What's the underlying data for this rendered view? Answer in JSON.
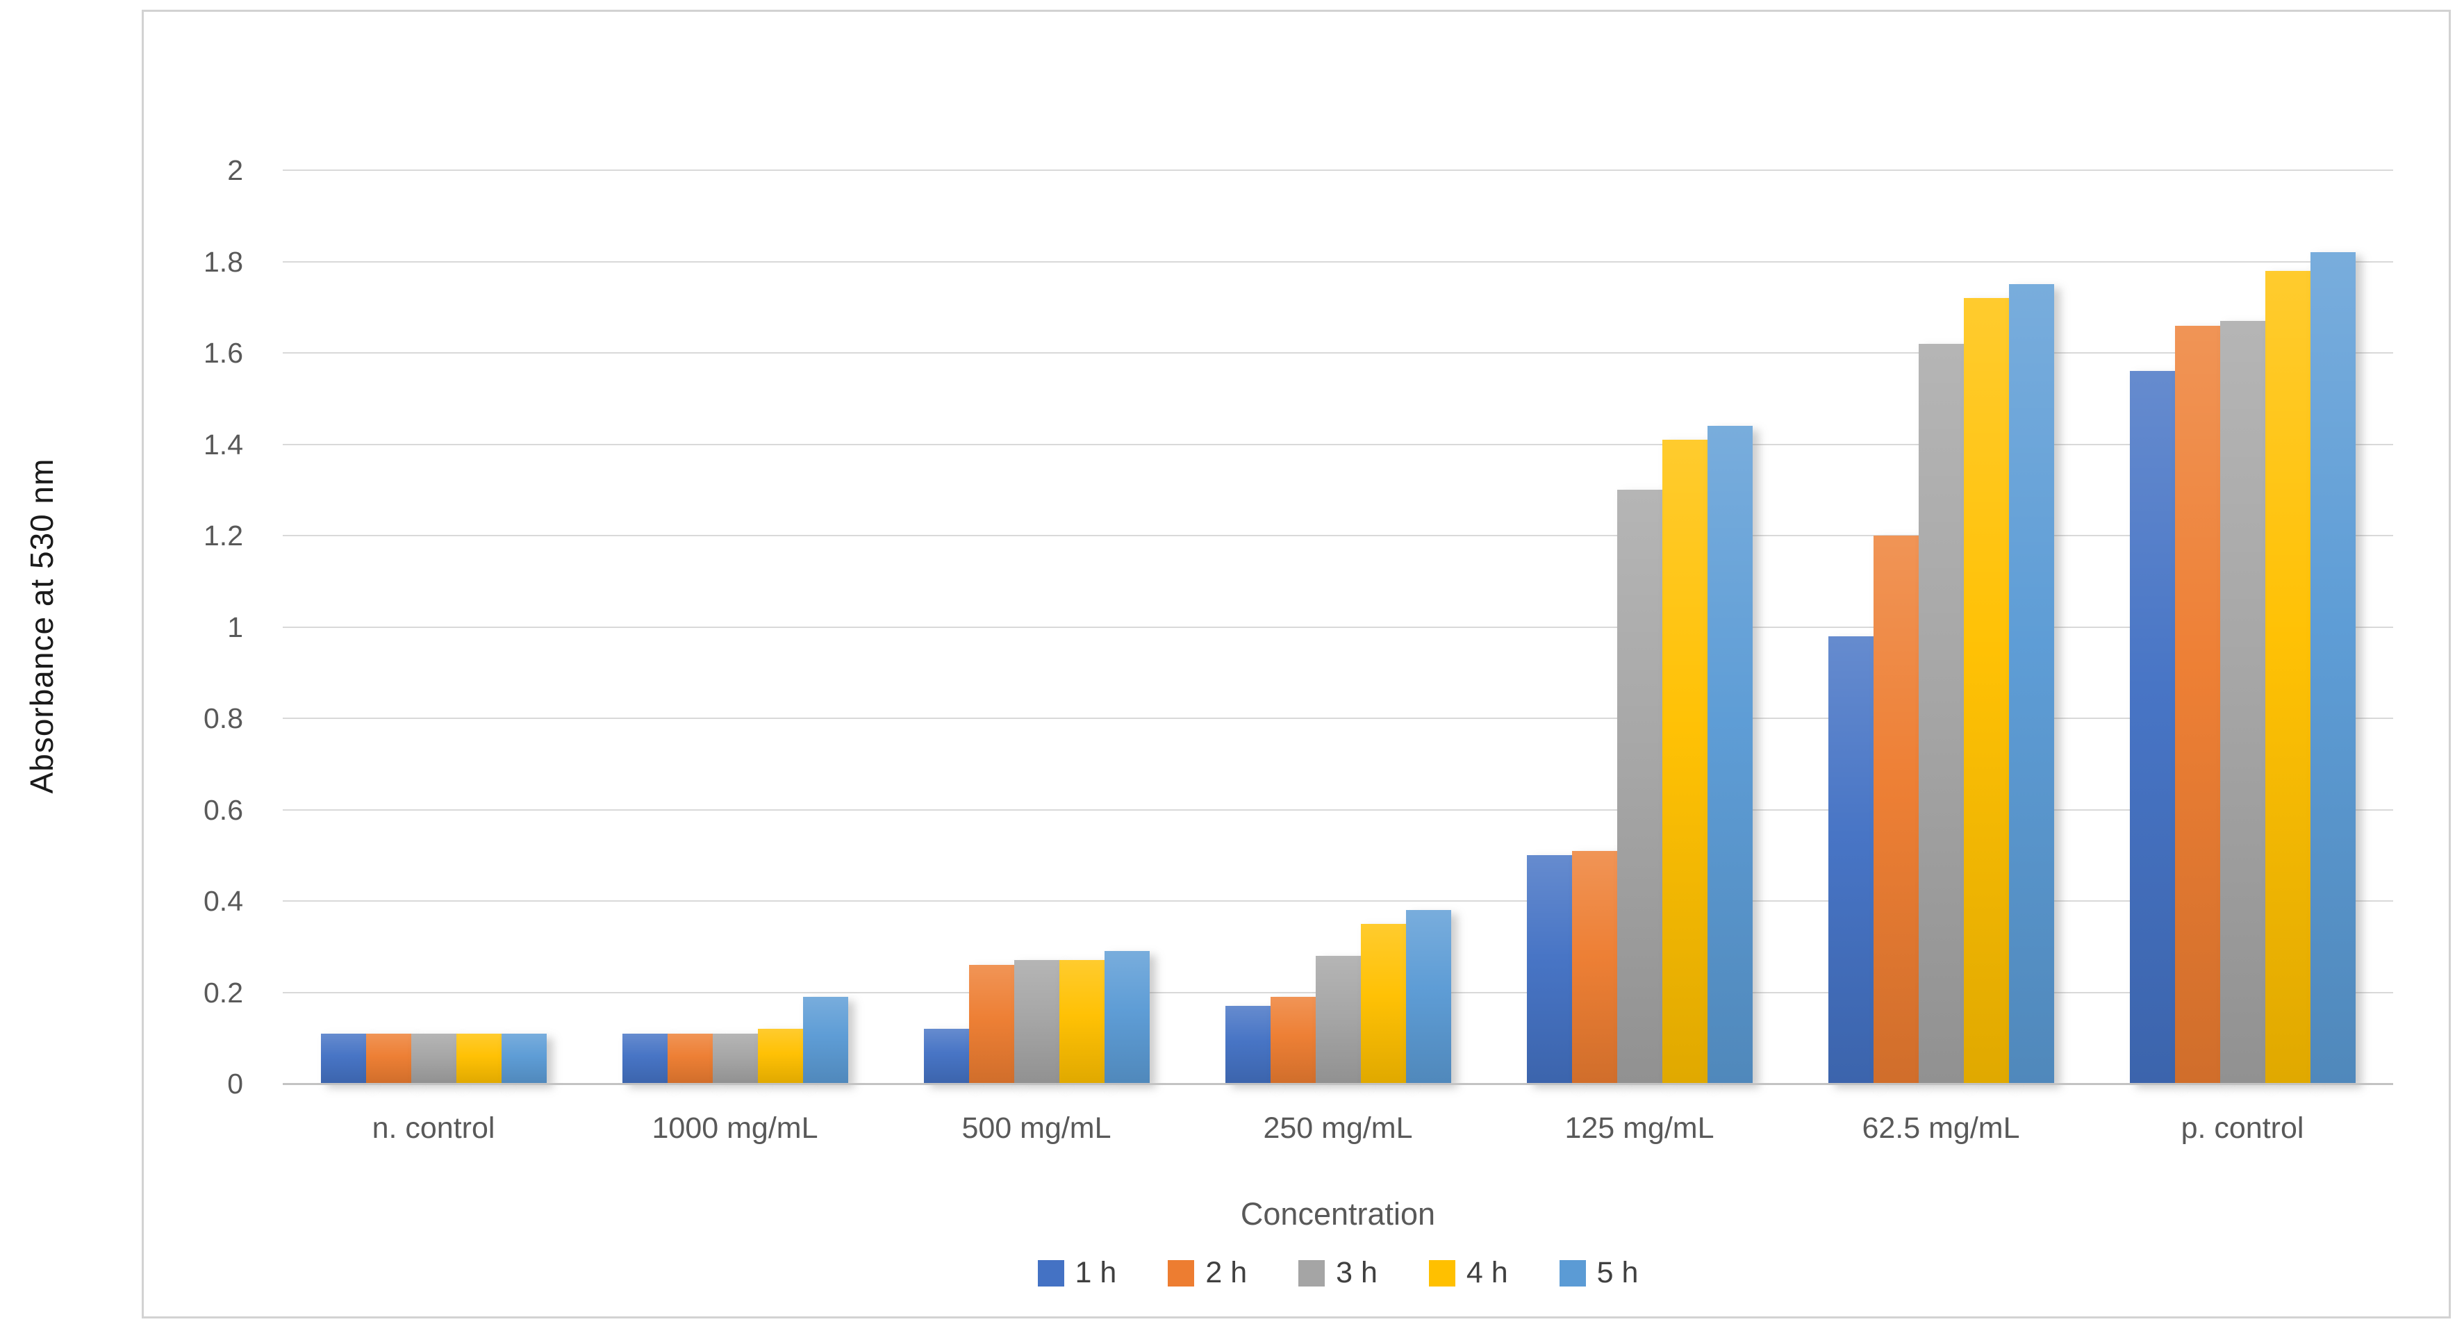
{
  "figure": {
    "background": "#ffffff",
    "border_color": "#d2d2d2"
  },
  "chart_data": {
    "type": "bar",
    "title": "",
    "xlabel": "Concentration",
    "ylabel": "Absorbance at 530 nm",
    "ylim": [
      0,
      2
    ],
    "ytick_step": 0.2,
    "ytick_labels": [
      "0",
      "0.2",
      "0.4",
      "0.6",
      "0.8",
      "1",
      "1.2",
      "1.4",
      "1.6",
      "1.8",
      "2"
    ],
    "grid": true,
    "legend_position": "bottom-center",
    "categories": [
      "n. control",
      "1000 mg/mL",
      "500 mg/mL",
      "250 mg/mL",
      "125 mg/mL",
      "62.5 mg/mL",
      "p. control"
    ],
    "series": [
      {
        "name": "1 h",
        "color": "#4472c4",
        "values": [
          0.11,
          0.11,
          0.12,
          0.17,
          0.5,
          0.98,
          1.56
        ]
      },
      {
        "name": "2 h",
        "color": "#ed7d31",
        "values": [
          0.11,
          0.11,
          0.26,
          0.19,
          0.51,
          1.2,
          1.66
        ]
      },
      {
        "name": "3 h",
        "color": "#a5a5a5",
        "values": [
          0.11,
          0.11,
          0.27,
          0.28,
          1.3,
          1.62,
          1.67
        ]
      },
      {
        "name": "4 h",
        "color": "#ffc000",
        "values": [
          0.11,
          0.12,
          0.27,
          0.35,
          1.41,
          1.72,
          1.78
        ]
      },
      {
        "name": "5 h",
        "color": "#5b9bd5",
        "values": [
          0.11,
          0.19,
          0.29,
          0.38,
          1.44,
          1.75,
          1.82
        ]
      }
    ],
    "gridline_color": "#d9d9d9",
    "axis_line_color": "#c3c3c3",
    "tick_label_color": "#595959",
    "axis_title_color": "#595959"
  }
}
